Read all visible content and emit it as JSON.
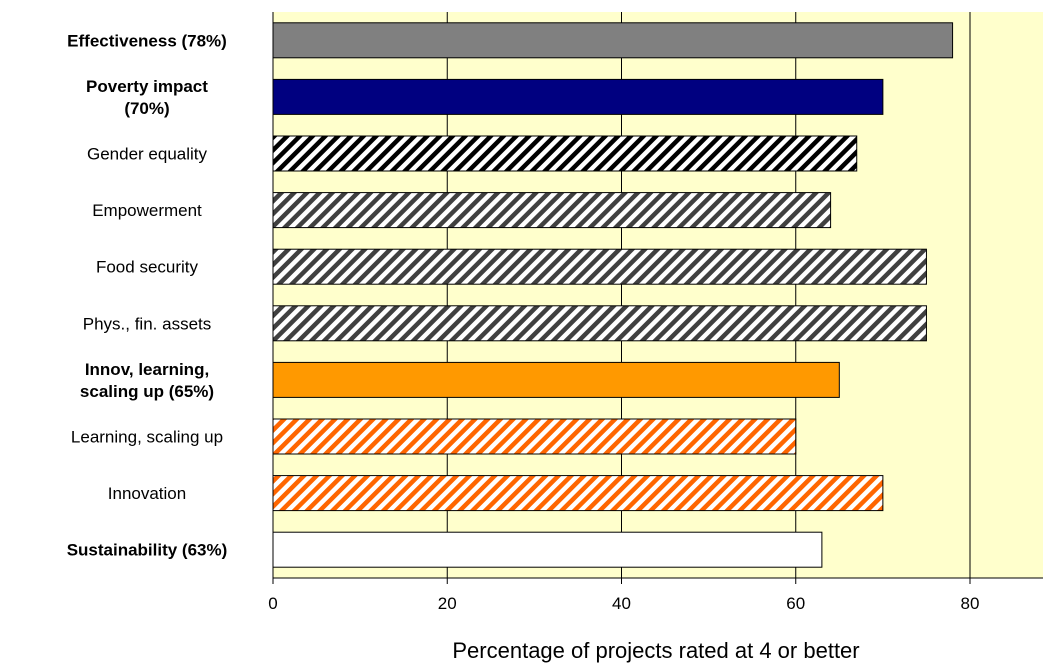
{
  "chart_data": {
    "type": "bar",
    "orientation": "horizontal",
    "title": "",
    "xlabel": "Percentage of projects rated at 4 or better",
    "ylabel": "",
    "xlim": [
      0,
      88
    ],
    "xticks": [
      0,
      20,
      40,
      60,
      80
    ],
    "grid": "vertical",
    "plot_background": "#FFFFCC",
    "categories": [
      "Effectiveness (78%)",
      "Poverty impact (70%)",
      "Gender equality",
      "Empowerment",
      "Food security",
      "Phys., fin. assets",
      "Innov, learning, scaling up (65%)",
      "Learning, scaling up",
      "Innovation",
      "Sustainability (63%)"
    ],
    "values": [
      78,
      70,
      67,
      64,
      75,
      75,
      65,
      60,
      70,
      63
    ],
    "bars": [
      {
        "label_lines": [
          "Effectiveness (78%)"
        ],
        "bold": true,
        "value": 78,
        "fill": "#808080",
        "pattern": "solid"
      },
      {
        "label_lines": [
          "Poverty impact",
          "(70%)"
        ],
        "bold": true,
        "value": 70,
        "fill": "#000080",
        "pattern": "solid"
      },
      {
        "label_lines": [
          "Gender equality"
        ],
        "bold": false,
        "value": 67,
        "fill": "#000000",
        "pattern": "hatch"
      },
      {
        "label_lines": [
          "Empowerment"
        ],
        "bold": false,
        "value": 64,
        "fill": "#404040",
        "pattern": "hatch"
      },
      {
        "label_lines": [
          "Food security"
        ],
        "bold": false,
        "value": 75,
        "fill": "#404040",
        "pattern": "hatch"
      },
      {
        "label_lines": [
          "Phys., fin. assets"
        ],
        "bold": false,
        "value": 75,
        "fill": "#404040",
        "pattern": "hatch"
      },
      {
        "label_lines": [
          "Innov, learning,",
          "scaling up (65%)"
        ],
        "bold": true,
        "value": 65,
        "fill": "#FF9900",
        "pattern": "solid"
      },
      {
        "label_lines": [
          "Learning, scaling up"
        ],
        "bold": false,
        "value": 60,
        "fill": "#FF6600",
        "pattern": "hatch"
      },
      {
        "label_lines": [
          "Innovation"
        ],
        "bold": false,
        "value": 70,
        "fill": "#FF6600",
        "pattern": "hatch"
      },
      {
        "label_lines": [
          "Sustainability (63%)"
        ],
        "bold": true,
        "value": 63,
        "fill": "#FFFFFF",
        "pattern": "solid"
      }
    ]
  }
}
